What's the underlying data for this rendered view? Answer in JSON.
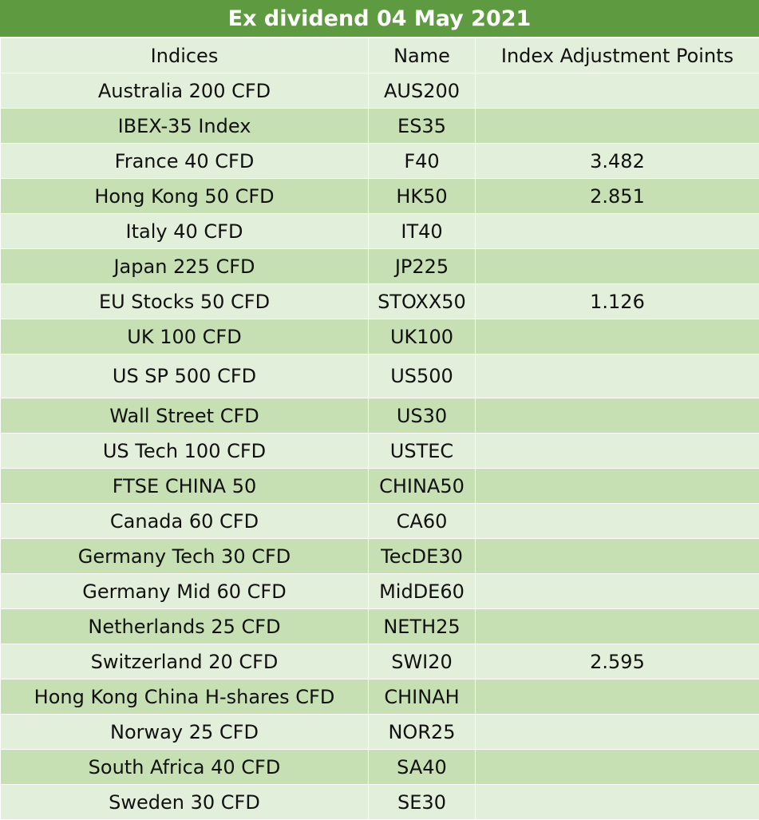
{
  "title": "Ex dividend 04 May 2021",
  "columns": [
    "Indices",
    "Name",
    "Index Adjustment Points"
  ],
  "rows": [
    {
      "index": "Australia 200 CFD",
      "name": "AUS200",
      "points": ""
    },
    {
      "index": "IBEX-35 Index",
      "name": "ES35",
      "points": ""
    },
    {
      "index": "France 40 CFD",
      "name": "F40",
      "points": "3.482"
    },
    {
      "index": "Hong Kong 50 CFD",
      "name": "HK50",
      "points": "2.851"
    },
    {
      "index": "Italy 40 CFD",
      "name": "IT40",
      "points": ""
    },
    {
      "index": "Japan 225 CFD",
      "name": "JP225",
      "points": ""
    },
    {
      "index": "EU Stocks 50 CFD",
      "name": "STOXX50",
      "points": "1.126"
    },
    {
      "index": "UK 100 CFD",
      "name": "UK100",
      "points": ""
    },
    {
      "index": "US SP 500 CFD",
      "name": "US500",
      "points": ""
    },
    {
      "index": "Wall Street CFD",
      "name": "US30",
      "points": ""
    },
    {
      "index": "US Tech 100 CFD",
      "name": "USTEC",
      "points": ""
    },
    {
      "index": "FTSE CHINA 50",
      "name": "CHINA50",
      "points": ""
    },
    {
      "index": "Canada 60 CFD",
      "name": "CA60",
      "points": ""
    },
    {
      "index": "Germany Tech 30 CFD",
      "name": "TecDE30",
      "points": ""
    },
    {
      "index": "Germany Mid 60 CFD",
      "name": "MidDE60",
      "points": ""
    },
    {
      "index": "Netherlands 25 CFD",
      "name": "NETH25",
      "points": ""
    },
    {
      "index": "Switzerland 20 CFD",
      "name": "SWI20",
      "points": "2.595"
    },
    {
      "index": "Hong Kong China H-shares CFD",
      "name": "CHINAH",
      "points": ""
    },
    {
      "index": "Norway 25 CFD",
      "name": "NOR25",
      "points": ""
    },
    {
      "index": "South Africa 40 CFD",
      "name": "SA40",
      "points": ""
    },
    {
      "index": "Sweden 30 CFD",
      "name": "SE30",
      "points": ""
    }
  ],
  "colors": {
    "title_bg": "#5e9a3f",
    "row_light": "#e2efda",
    "row_dark": "#c6e0b4"
  }
}
